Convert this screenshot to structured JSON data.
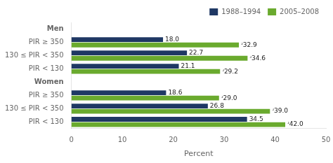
{
  "chart_data": {
    "type": "bar",
    "orientation": "horizontal",
    "categories": [
      "Men",
      "PIR ≥ 350",
      "130 ≤ PIR < 350",
      "PIR < 130",
      "Women",
      "PIR ≥ 350",
      "130 ≤ PIR < 350",
      "PIR < 130"
    ],
    "series": [
      {
        "name": "1988–1994",
        "color": "#1f3864",
        "values": [
          null,
          18.0,
          22.7,
          21.1,
          null,
          18.6,
          26.8,
          34.5
        ],
        "value_labels": [
          null,
          "18.0",
          "22.7",
          "21.1",
          null,
          "18.6",
          "26.8",
          "34.5"
        ]
      },
      {
        "name": "2005–2008",
        "color": "#6aaa2e",
        "values": [
          null,
          32.9,
          34.6,
          29.2,
          null,
          29.0,
          39.0,
          42.0
        ],
        "value_labels": [
          null,
          "ʴ32.9",
          "ʴ34.6",
          "ʴ29.2",
          null,
          "ʴ29.0",
          "ʴ39.0",
          "ʴ42.0"
        ]
      }
    ],
    "xlabel": "Percent",
    "xlim": [
      0,
      50
    ],
    "xticks": [
      0,
      10,
      20,
      30,
      40,
      50
    ],
    "grid": false,
    "legend": "upper right",
    "data_labels": true
  }
}
